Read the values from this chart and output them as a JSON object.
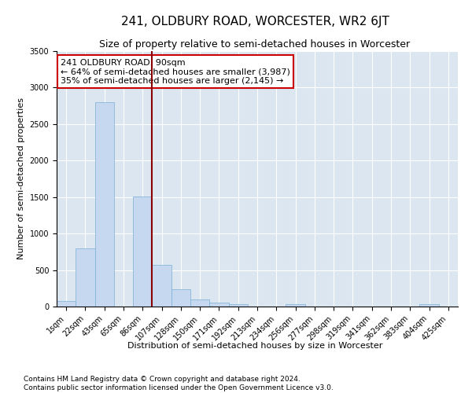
{
  "title": "241, OLDBURY ROAD, WORCESTER, WR2 6JT",
  "subtitle": "Size of property relative to semi-detached houses in Worcester",
  "xlabel": "Distribution of semi-detached houses by size in Worcester",
  "ylabel": "Number of semi-detached properties",
  "categories": [
    "1sqm",
    "22sqm",
    "43sqm",
    "65sqm",
    "86sqm",
    "107sqm",
    "128sqm",
    "150sqm",
    "171sqm",
    "192sqm",
    "213sqm",
    "234sqm",
    "256sqm",
    "277sqm",
    "298sqm",
    "319sqm",
    "341sqm",
    "362sqm",
    "383sqm",
    "404sqm",
    "425sqm"
  ],
  "values": [
    75,
    800,
    2800,
    0,
    1510,
    575,
    240,
    100,
    55,
    35,
    0,
    0,
    30,
    0,
    0,
    0,
    0,
    0,
    0,
    35,
    0
  ],
  "bar_color": "#c5d8f0",
  "bar_edge_color": "#7aafd4",
  "vline_color": "#8b0000",
  "annotation_text": "241 OLDBURY ROAD: 90sqm\n← 64% of semi-detached houses are smaller (3,987)\n35% of semi-detached houses are larger (2,145) →",
  "annotation_box_color": "white",
  "annotation_box_edge": "#cc0000",
  "ylim": [
    0,
    3500
  ],
  "yticks": [
    0,
    500,
    1000,
    1500,
    2000,
    2500,
    3000,
    3500
  ],
  "background_color": "#dce6f0",
  "footer": "Contains HM Land Registry data © Crown copyright and database right 2024.\nContains public sector information licensed under the Open Government Licence v3.0.",
  "title_fontsize": 11,
  "subtitle_fontsize": 9,
  "axis_label_fontsize": 8,
  "tick_fontsize": 7,
  "annotation_fontsize": 8,
  "footer_fontsize": 6.5
}
